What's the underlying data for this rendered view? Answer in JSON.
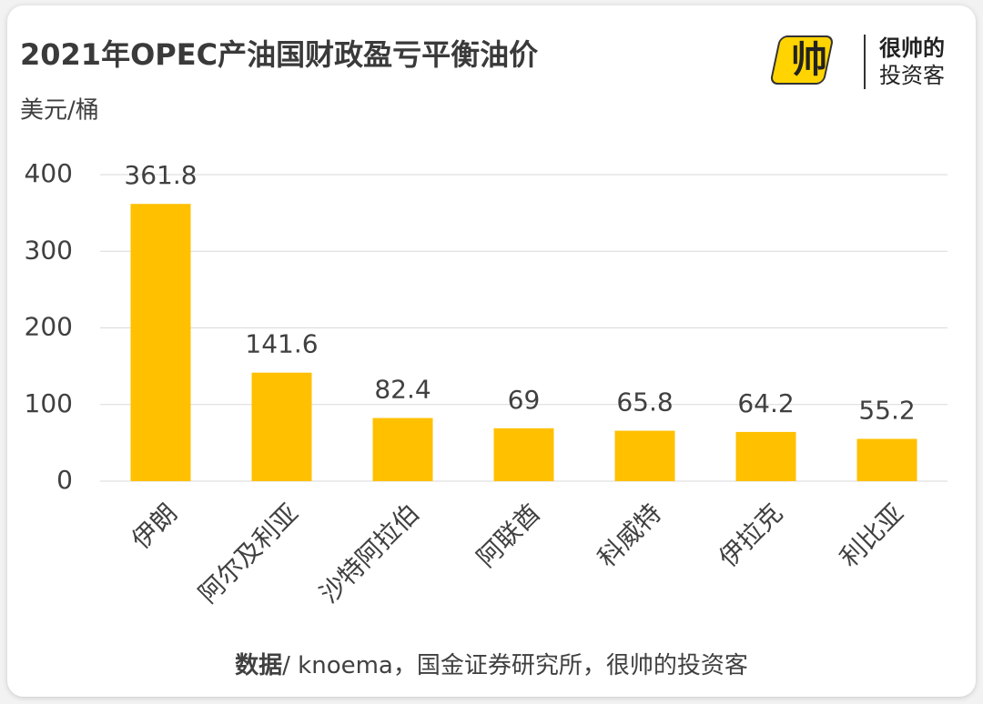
{
  "chart_data": {
    "type": "bar",
    "title": "2021年OPEC产油国财政盈亏平衡油价",
    "y_label": "美元/桶",
    "categories": [
      "伊朗",
      "阿尔及利亚",
      "沙特阿拉伯",
      "阿联酋",
      "科威特",
      "伊拉克",
      "利比亚"
    ],
    "values": [
      361.8,
      141.6,
      82.4,
      69,
      65.8,
      64.2,
      55.2
    ],
    "color": "#ffc000",
    "ylim": [
      0,
      400
    ],
    "yticks": [
      0,
      100,
      200,
      300,
      400
    ],
    "grid": true,
    "source_label": "数据",
    "source": "/ knoema，国金证券研究所，很帅的投资客"
  },
  "logo": {
    "mark": "帅",
    "line1": "很帅的",
    "line2": "投资客"
  }
}
